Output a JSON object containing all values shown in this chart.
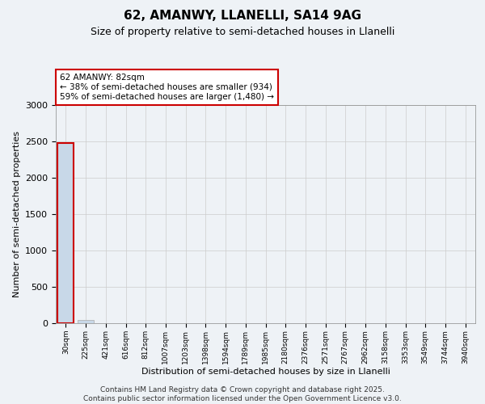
{
  "title1": "62, AMANWY, LLANELLI, SA14 9AG",
  "title2": "Size of property relative to semi-detached houses in Llanelli",
  "xlabel": "Distribution of semi-detached houses by size in Llanelli",
  "ylabel": "Number of semi-detached properties",
  "annotation_text": "62 AMANWY: 82sqm\n← 38% of semi-detached houses are smaller (934)\n59% of semi-detached houses are larger (1,480) →",
  "bar_color_normal": "#c8d8e8",
  "subject_bar_edge_color": "#cc0000",
  "ylim": [
    0,
    3000
  ],
  "yticks": [
    0,
    500,
    1000,
    1500,
    2000,
    2500,
    3000
  ],
  "categories": [
    "30sqm",
    "225sqm",
    "421sqm",
    "616sqm",
    "812sqm",
    "1007sqm",
    "1203sqm",
    "1398sqm",
    "1594sqm",
    "1789sqm",
    "1985sqm",
    "2180sqm",
    "2376sqm",
    "2571sqm",
    "2767sqm",
    "2962sqm",
    "3158sqm",
    "3353sqm",
    "3549sqm",
    "3744sqm",
    "3940sqm"
  ],
  "values": [
    2480,
    50,
    5,
    2,
    1,
    0,
    0,
    0,
    0,
    0,
    0,
    0,
    0,
    0,
    0,
    0,
    0,
    0,
    0,
    0,
    0
  ],
  "subject_bin_index": 0,
  "background_color": "#eef2f6",
  "footer_text": "Contains HM Land Registry data © Crown copyright and database right 2025.\nContains public sector information licensed under the Open Government Licence v3.0.",
  "grid_color": "#cccccc",
  "title1_fontsize": 11,
  "title2_fontsize": 9,
  "ylabel_fontsize": 8,
  "xlabel_fontsize": 8,
  "footer_fontsize": 6.5
}
